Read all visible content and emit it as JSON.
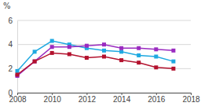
{
  "chart_data": {
    "type": "line",
    "y_label": "%",
    "x": [
      2008,
      2009,
      2010,
      2011,
      2012,
      2013,
      2014,
      2015,
      2016,
      2017
    ],
    "series": [
      {
        "color": "#1fa9e1",
        "marker": "square",
        "values": [
          1.8,
          3.4,
          4.3,
          4.0,
          3.7,
          3.5,
          3.4,
          3.1,
          3.0,
          2.6
        ]
      },
      {
        "color": "#9a2bc0",
        "marker": "square",
        "values": [
          1.4,
          2.6,
          3.8,
          3.8,
          3.9,
          4.0,
          3.7,
          3.7,
          3.6,
          3.5
        ]
      },
      {
        "color": "#b3122e",
        "marker": "square",
        "values": [
          1.5,
          2.6,
          3.3,
          3.2,
          2.9,
          3.0,
          2.7,
          2.5,
          2.1,
          2.0
        ]
      }
    ],
    "xlim": [
      2008,
      2018
    ],
    "xticks": [
      2008,
      2010,
      2012,
      2014,
      2016,
      2018
    ],
    "ylim": [
      0,
      6
    ],
    "yticks": [
      0,
      2,
      4,
      6
    ],
    "grid": true
  }
}
